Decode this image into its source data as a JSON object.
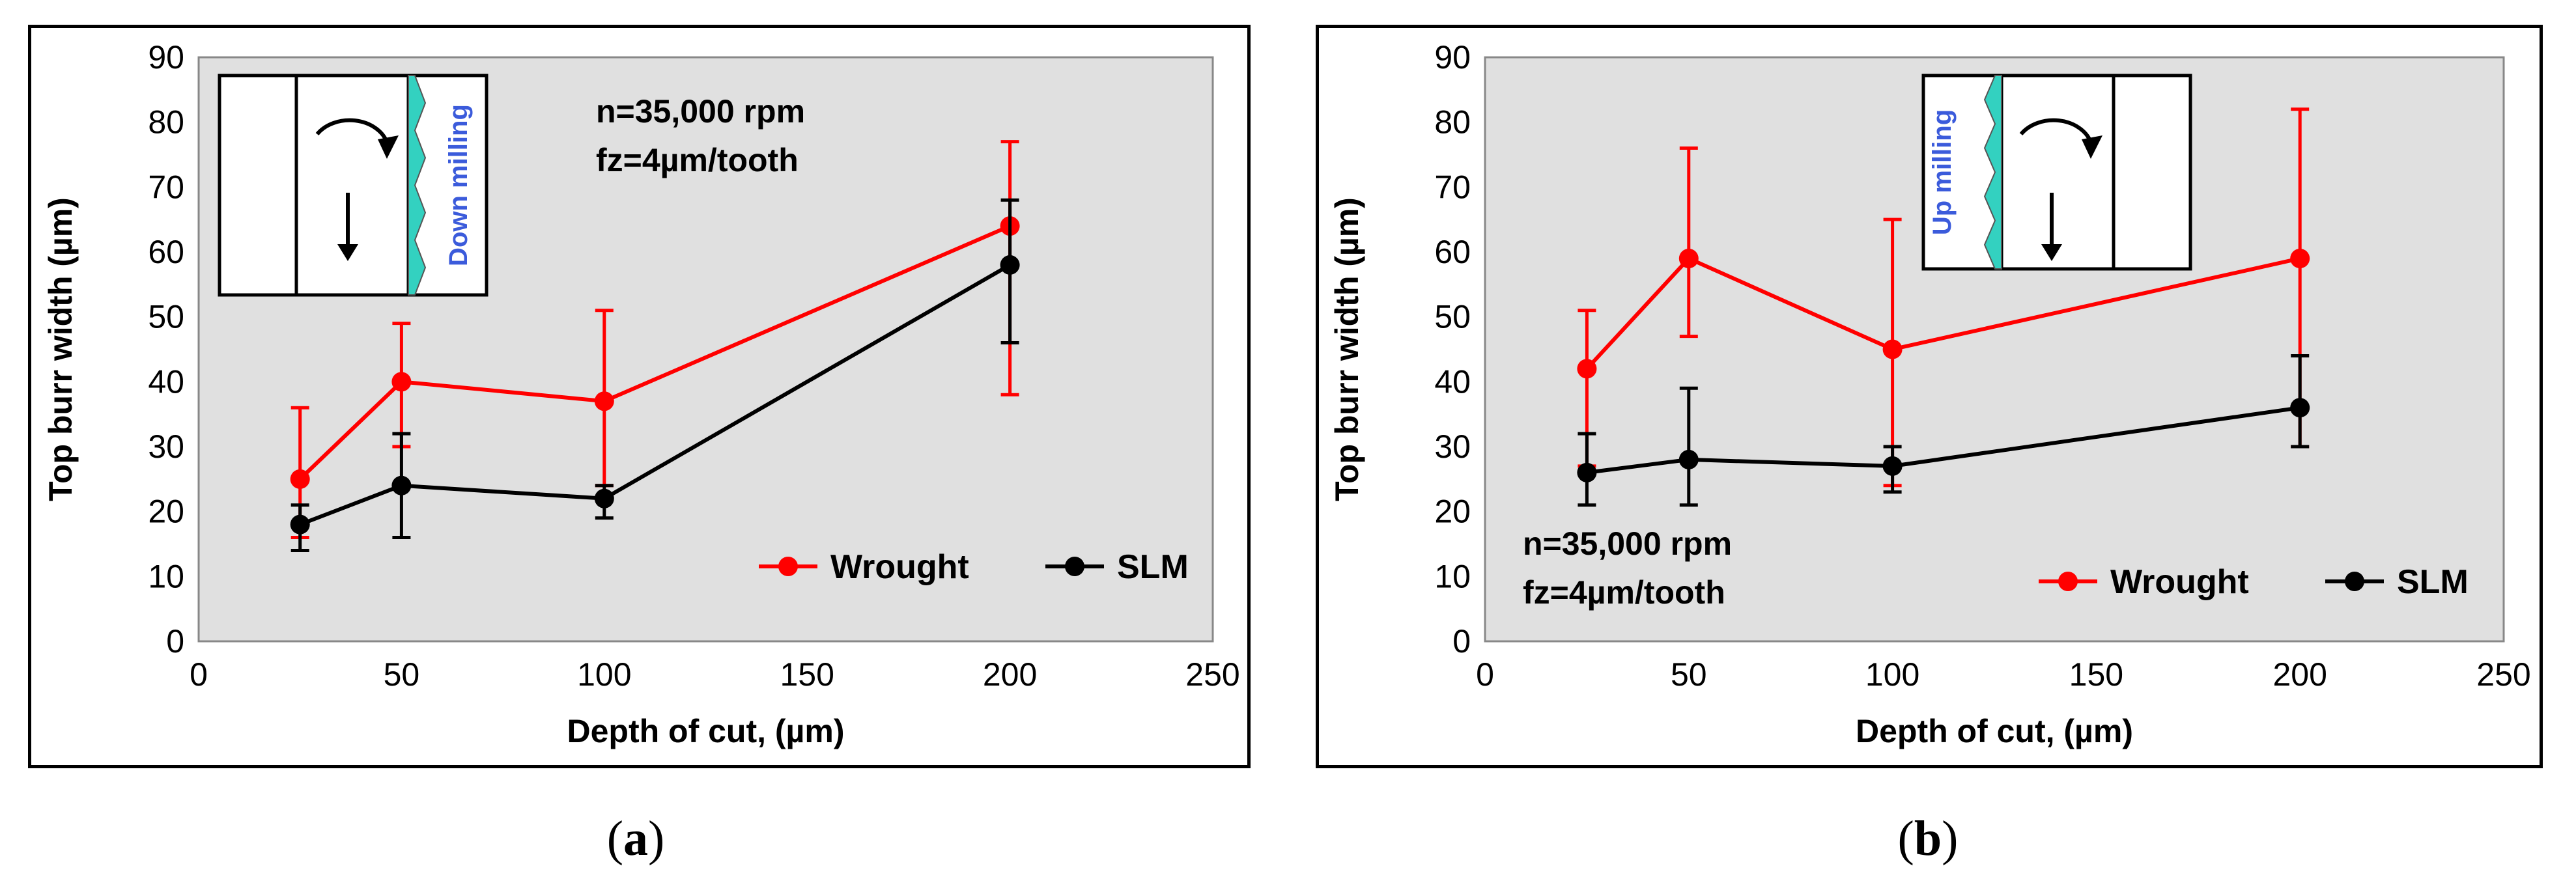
{
  "chart_data": [
    {
      "type": "line",
      "panel_label": "a",
      "xlabel": "Depth of cut,  (µm)",
      "ylabel": "Top burr width (µm)",
      "xlim": [
        0,
        250
      ],
      "ylim": [
        0,
        90
      ],
      "xticks": [
        0,
        50,
        100,
        150,
        200,
        250
      ],
      "yticks": [
        0,
        10,
        20,
        30,
        40,
        50,
        60,
        70,
        80,
        90
      ],
      "annotation": [
        "n=35,000 rpm",
        "fz=4µm/tooth"
      ],
      "inset_label": "Down milling",
      "legend": [
        "Wrought",
        "SLM"
      ],
      "series": [
        {
          "name": "Wrought",
          "color": "#ff0000",
          "x": [
            25,
            50,
            100,
            200
          ],
          "y": [
            25,
            40,
            37,
            64
          ],
          "err_low": [
            16,
            30,
            24,
            38
          ],
          "err_high": [
            36,
            49,
            51,
            77
          ]
        },
        {
          "name": "SLM",
          "color": "#000000",
          "x": [
            25,
            50,
            100,
            200
          ],
          "y": [
            18,
            24,
            22,
            58
          ],
          "err_low": [
            14,
            16,
            19,
            46
          ],
          "err_high": [
            21,
            32,
            24,
            68
          ]
        }
      ]
    },
    {
      "type": "line",
      "panel_label": "b",
      "xlabel": "Depth of cut,  (µm)",
      "ylabel": "Top burr width (µm)",
      "xlim": [
        0,
        250
      ],
      "ylim": [
        0,
        90
      ],
      "xticks": [
        0,
        50,
        100,
        150,
        200,
        250
      ],
      "yticks": [
        0,
        10,
        20,
        30,
        40,
        50,
        60,
        70,
        80,
        90
      ],
      "annotation": [
        "n=35,000 rpm",
        "fz=4µm/tooth"
      ],
      "inset_label": "Up milling",
      "legend": [
        "Wrought",
        "SLM"
      ],
      "series": [
        {
          "name": "Wrought",
          "color": "#ff0000",
          "x": [
            25,
            50,
            100,
            200
          ],
          "y": [
            42,
            59,
            45,
            59
          ],
          "err_low": [
            27,
            47,
            24,
            30
          ],
          "err_high": [
            51,
            76,
            65,
            82
          ]
        },
        {
          "name": "SLM",
          "color": "#000000",
          "x": [
            25,
            50,
            100,
            200
          ],
          "y": [
            26,
            28,
            27,
            36
          ],
          "err_low": [
            21,
            21,
            23,
            30
          ],
          "err_high": [
            32,
            39,
            30,
            44
          ]
        }
      ]
    }
  ],
  "colors": {
    "plot_bg": "#e0e0e0",
    "wrought": "#ff0000",
    "slm": "#000000",
    "chip": "#33d1c0",
    "inset_text": "#3b5bdb"
  },
  "sublabels": [
    "a",
    "b"
  ]
}
